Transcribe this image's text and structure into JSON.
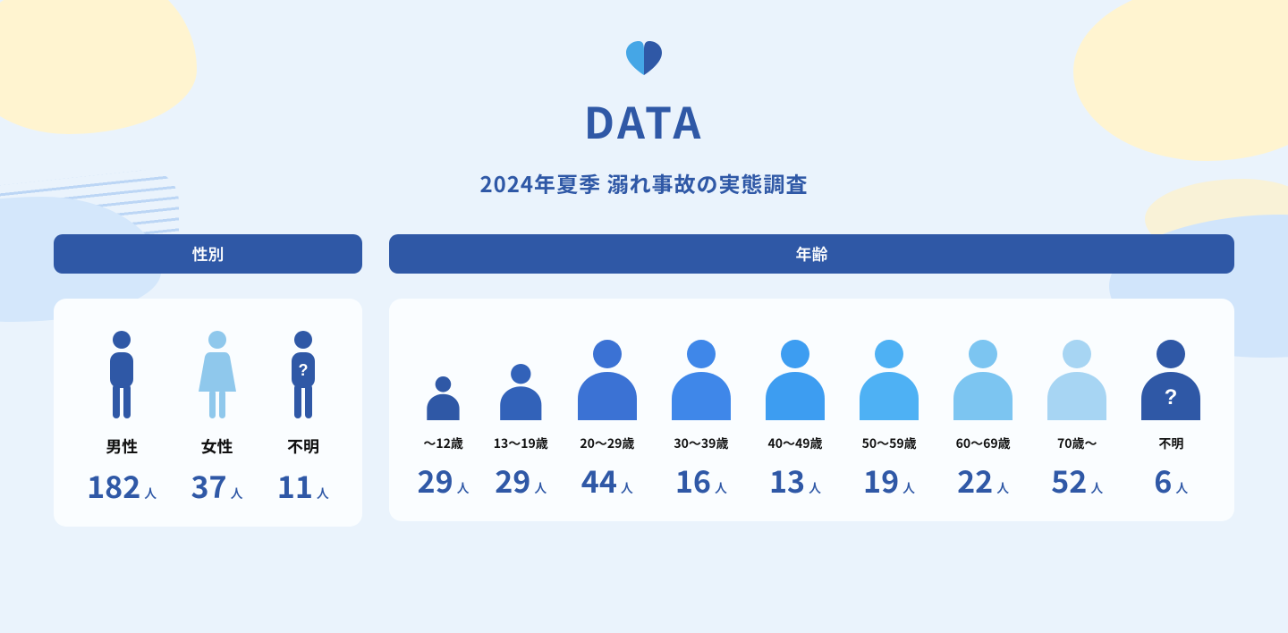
{
  "header": {
    "title": "DATA",
    "subtitle": "2024年夏季 溺れ事故の実態調査",
    "logo_colors": {
      "left": "#45a6e6",
      "right": "#2f58a6"
    }
  },
  "palette": {
    "background": "#eaf3fc",
    "panel_bg": "#fafdff",
    "header_bg": "#2f58a6",
    "header_text": "#ffffff",
    "accent_dark": "#2f58a6",
    "text": "#111111",
    "value_color": "#2f58a6",
    "unit_text": "人",
    "title_fontsize": 48,
    "subtitle_fontsize": 24,
    "label_fontsize": 18,
    "age_label_fontsize": 14,
    "value_fontsize": 34,
    "unit_fontsize": 14,
    "icon_area_height": 108
  },
  "sections": {
    "gender": {
      "title": "性別",
      "items": [
        {
          "label": "男性",
          "value": 182,
          "type": "male",
          "color": "#2f58a6",
          "scale": 1.0
        },
        {
          "label": "女性",
          "value": 37,
          "type": "female",
          "color": "#8fc8ec",
          "scale": 1.0
        },
        {
          "label": "不明",
          "value": 11,
          "type": "unknown",
          "color": "#2f58a6",
          "scale": 1.0
        }
      ]
    },
    "age": {
      "title": "年齢",
      "items": [
        {
          "label": "〜12歳",
          "value": 29,
          "type": "bust",
          "color": "#2f58a6",
          "scale": 0.55
        },
        {
          "label": "13〜19歳",
          "value": 29,
          "type": "bust",
          "color": "#3262b9",
          "scale": 0.7
        },
        {
          "label": "20〜29歳",
          "value": 44,
          "type": "bust",
          "color": "#3b72d4",
          "scale": 1.0
        },
        {
          "label": "30〜39歳",
          "value": 16,
          "type": "bust",
          "color": "#3f87e9",
          "scale": 1.0
        },
        {
          "label": "40〜49歳",
          "value": 13,
          "type": "bust",
          "color": "#3d9df1",
          "scale": 1.0
        },
        {
          "label": "50〜59歳",
          "value": 19,
          "type": "bust",
          "color": "#4eb1f4",
          "scale": 1.0
        },
        {
          "label": "60〜69歳",
          "value": 22,
          "type": "bust",
          "color": "#7cc5f1",
          "scale": 1.0
        },
        {
          "label": "70歳〜",
          "value": 52,
          "type": "bust",
          "color": "#a7d5f3",
          "scale": 1.0
        },
        {
          "label": "不明",
          "value": 6,
          "type": "unknown_bust",
          "color": "#2f58a6",
          "scale": 1.0
        }
      ]
    }
  }
}
